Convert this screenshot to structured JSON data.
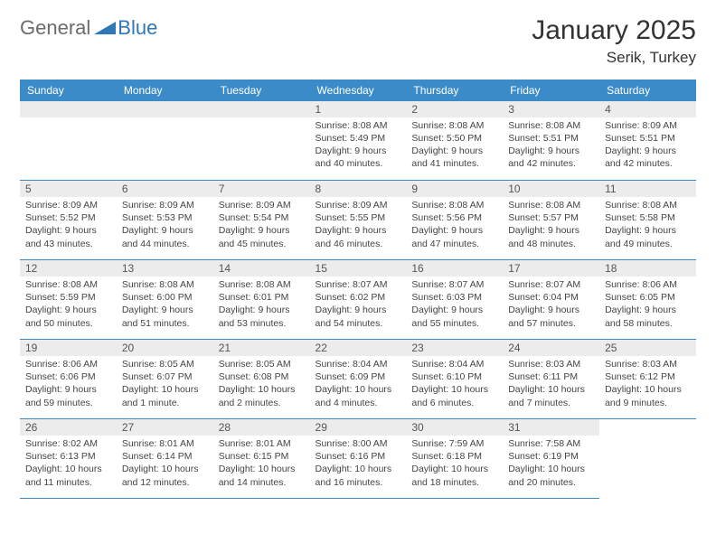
{
  "logo": {
    "word1": "General",
    "word2": "Blue",
    "color_gray": "#6b6b6b",
    "color_blue": "#2f77b5"
  },
  "title": "January 2025",
  "location": "Serik, Turkey",
  "header_bg": "#3b8bc9",
  "header_fg": "#ffffff",
  "daynum_bg": "#ececec",
  "border_color": "#3b8bc9",
  "days_of_week": [
    "Sunday",
    "Monday",
    "Tuesday",
    "Wednesday",
    "Thursday",
    "Friday",
    "Saturday"
  ],
  "weeks": [
    [
      null,
      null,
      null,
      {
        "n": "1",
        "sr": "8:08 AM",
        "ss": "5:49 PM",
        "dl": "9 hours and 40 minutes."
      },
      {
        "n": "2",
        "sr": "8:08 AM",
        "ss": "5:50 PM",
        "dl": "9 hours and 41 minutes."
      },
      {
        "n": "3",
        "sr": "8:08 AM",
        "ss": "5:51 PM",
        "dl": "9 hours and 42 minutes."
      },
      {
        "n": "4",
        "sr": "8:09 AM",
        "ss": "5:51 PM",
        "dl": "9 hours and 42 minutes."
      }
    ],
    [
      {
        "n": "5",
        "sr": "8:09 AM",
        "ss": "5:52 PM",
        "dl": "9 hours and 43 minutes."
      },
      {
        "n": "6",
        "sr": "8:09 AM",
        "ss": "5:53 PM",
        "dl": "9 hours and 44 minutes."
      },
      {
        "n": "7",
        "sr": "8:09 AM",
        "ss": "5:54 PM",
        "dl": "9 hours and 45 minutes."
      },
      {
        "n": "8",
        "sr": "8:09 AM",
        "ss": "5:55 PM",
        "dl": "9 hours and 46 minutes."
      },
      {
        "n": "9",
        "sr": "8:08 AM",
        "ss": "5:56 PM",
        "dl": "9 hours and 47 minutes."
      },
      {
        "n": "10",
        "sr": "8:08 AM",
        "ss": "5:57 PM",
        "dl": "9 hours and 48 minutes."
      },
      {
        "n": "11",
        "sr": "8:08 AM",
        "ss": "5:58 PM",
        "dl": "9 hours and 49 minutes."
      }
    ],
    [
      {
        "n": "12",
        "sr": "8:08 AM",
        "ss": "5:59 PM",
        "dl": "9 hours and 50 minutes."
      },
      {
        "n": "13",
        "sr": "8:08 AM",
        "ss": "6:00 PM",
        "dl": "9 hours and 51 minutes."
      },
      {
        "n": "14",
        "sr": "8:08 AM",
        "ss": "6:01 PM",
        "dl": "9 hours and 53 minutes."
      },
      {
        "n": "15",
        "sr": "8:07 AM",
        "ss": "6:02 PM",
        "dl": "9 hours and 54 minutes."
      },
      {
        "n": "16",
        "sr": "8:07 AM",
        "ss": "6:03 PM",
        "dl": "9 hours and 55 minutes."
      },
      {
        "n": "17",
        "sr": "8:07 AM",
        "ss": "6:04 PM",
        "dl": "9 hours and 57 minutes."
      },
      {
        "n": "18",
        "sr": "8:06 AM",
        "ss": "6:05 PM",
        "dl": "9 hours and 58 minutes."
      }
    ],
    [
      {
        "n": "19",
        "sr": "8:06 AM",
        "ss": "6:06 PM",
        "dl": "9 hours and 59 minutes."
      },
      {
        "n": "20",
        "sr": "8:05 AM",
        "ss": "6:07 PM",
        "dl": "10 hours and 1 minute."
      },
      {
        "n": "21",
        "sr": "8:05 AM",
        "ss": "6:08 PM",
        "dl": "10 hours and 2 minutes."
      },
      {
        "n": "22",
        "sr": "8:04 AM",
        "ss": "6:09 PM",
        "dl": "10 hours and 4 minutes."
      },
      {
        "n": "23",
        "sr": "8:04 AM",
        "ss": "6:10 PM",
        "dl": "10 hours and 6 minutes."
      },
      {
        "n": "24",
        "sr": "8:03 AM",
        "ss": "6:11 PM",
        "dl": "10 hours and 7 minutes."
      },
      {
        "n": "25",
        "sr": "8:03 AM",
        "ss": "6:12 PM",
        "dl": "10 hours and 9 minutes."
      }
    ],
    [
      {
        "n": "26",
        "sr": "8:02 AM",
        "ss": "6:13 PM",
        "dl": "10 hours and 11 minutes."
      },
      {
        "n": "27",
        "sr": "8:01 AM",
        "ss": "6:14 PM",
        "dl": "10 hours and 12 minutes."
      },
      {
        "n": "28",
        "sr": "8:01 AM",
        "ss": "6:15 PM",
        "dl": "10 hours and 14 minutes."
      },
      {
        "n": "29",
        "sr": "8:00 AM",
        "ss": "6:16 PM",
        "dl": "10 hours and 16 minutes."
      },
      {
        "n": "30",
        "sr": "7:59 AM",
        "ss": "6:18 PM",
        "dl": "10 hours and 18 minutes."
      },
      {
        "n": "31",
        "sr": "7:58 AM",
        "ss": "6:19 PM",
        "dl": "10 hours and 20 minutes."
      },
      null
    ]
  ],
  "labels": {
    "sunrise": "Sunrise:",
    "sunset": "Sunset:",
    "daylight": "Daylight:"
  }
}
